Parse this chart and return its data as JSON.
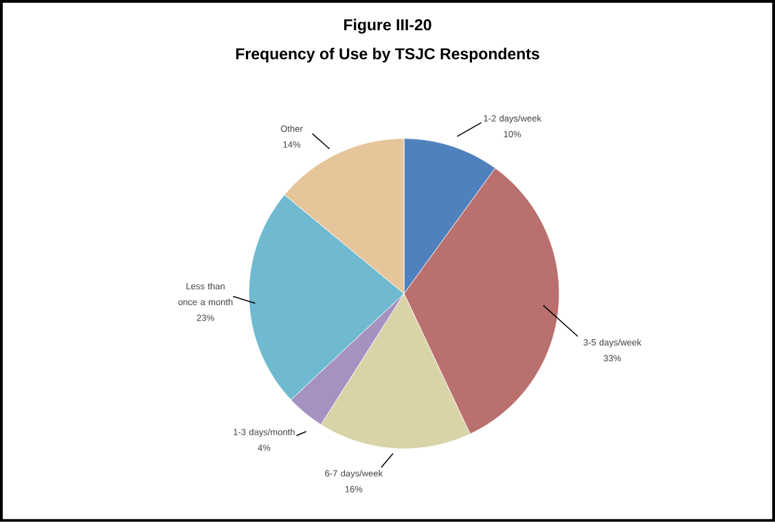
{
  "chart_data": {
    "type": "pie",
    "title": "Figure III-20",
    "subtitle": "Frequency of Use by TSJC Respondents",
    "categories": [
      "1-2 days/week",
      "3-5 days/week",
      "6-7 days/week",
      "1-3 days/month",
      "Less than once a month",
      "Other"
    ],
    "values": [
      10,
      33,
      16,
      4,
      23,
      14
    ],
    "value_labels": [
      "10%",
      "33%",
      "16%",
      "4%",
      "23%",
      "14%"
    ],
    "colors": [
      "#4f81bd",
      "#b9706e",
      "#d9d3a8",
      "#a592c0",
      "#6fbad0",
      "#e6c59a"
    ]
  }
}
